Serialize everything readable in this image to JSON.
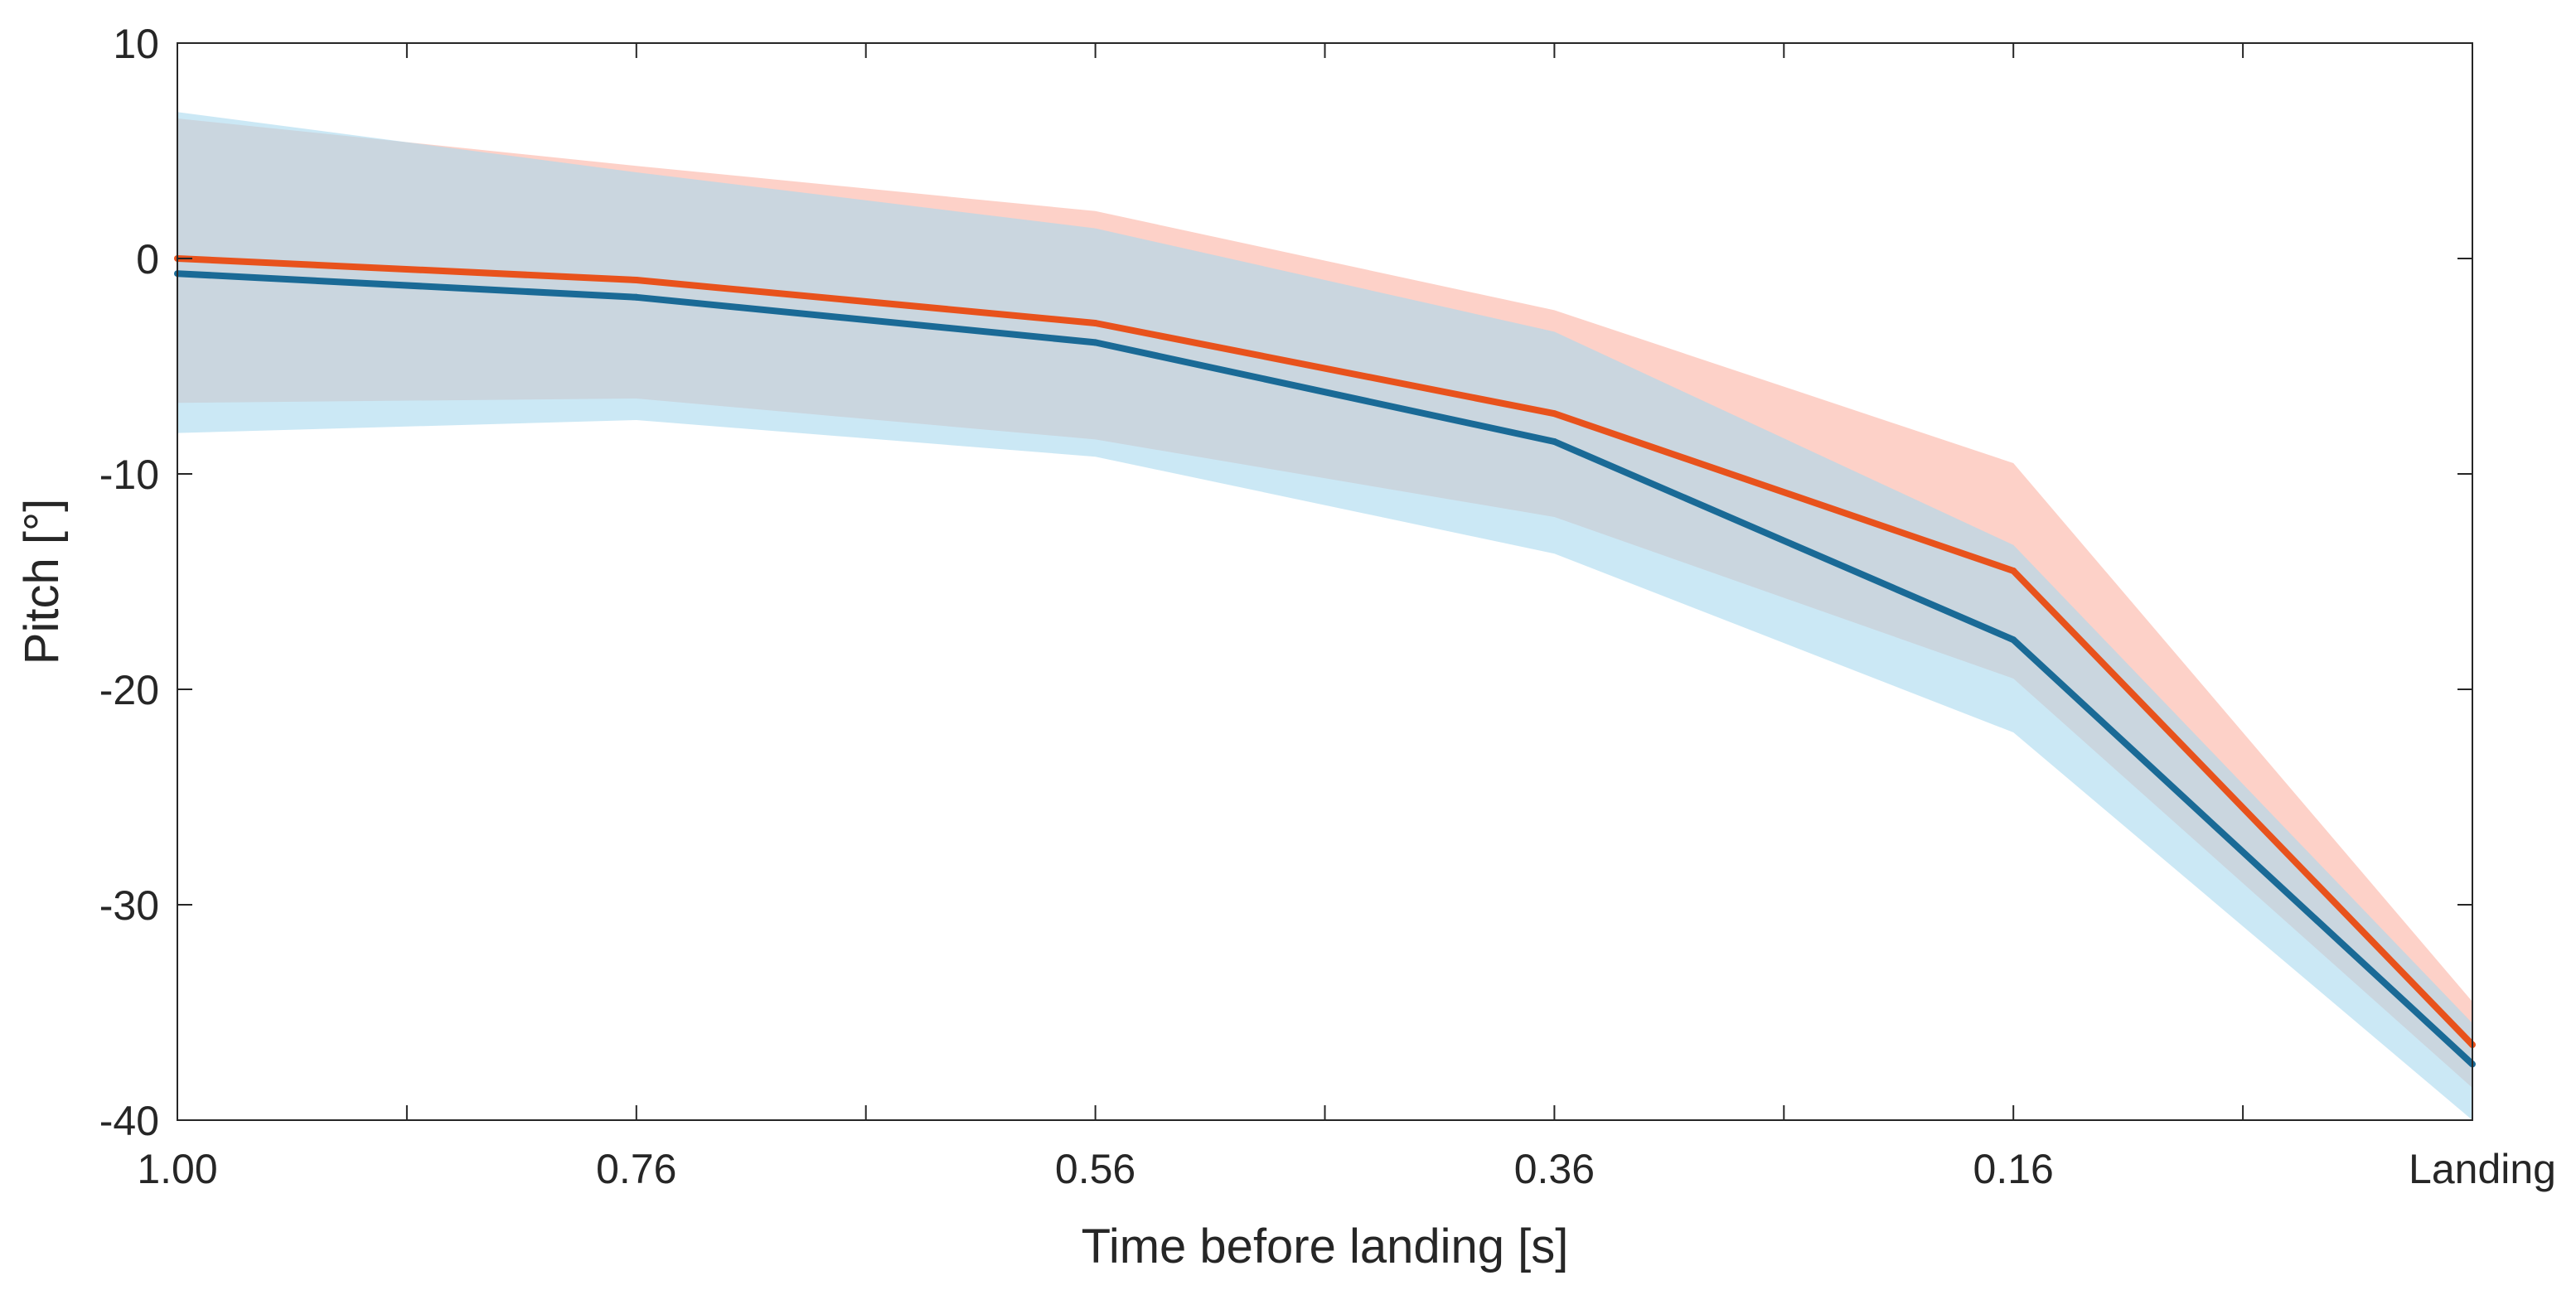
{
  "chart_data": {
    "type": "line",
    "title": "",
    "xlabel": "Time before landing [s]",
    "ylabel": "Pitch [°]",
    "x_tick_labels": [
      "1.00",
      "0.76",
      "0.56",
      "0.36",
      "0.16",
      "Landing"
    ],
    "x_minor_ticks": 11,
    "ylim": [
      -40,
      10
    ],
    "y_ticks": [
      10,
      0,
      -10,
      -20,
      -30,
      -40
    ],
    "grid": false,
    "series": [
      {
        "name": "series-orange",
        "color": "#e8521c",
        "band_color": "#fbb3a3",
        "values": [
          0,
          -1,
          -3,
          -7.2,
          -14.5,
          -36.5
        ],
        "band_upper": [
          6.5,
          4.3,
          2.2,
          -2.4,
          -9.5,
          -34.5
        ],
        "band_lower": [
          -6.7,
          -6.5,
          -8.4,
          -12,
          -19.5,
          -38.5
        ]
      },
      {
        "name": "series-blue",
        "color": "#1a6a96",
        "band_color": "#a8d9ee",
        "values": [
          -0.7,
          -1.8,
          -3.9,
          -8.5,
          -17.7,
          -37.4
        ],
        "band_upper": [
          6.8,
          4,
          1.4,
          -3.4,
          -13.3,
          -35.5
        ],
        "band_lower": [
          -8.1,
          -7.5,
          -9.2,
          -13.7,
          -22,
          -40
        ]
      }
    ]
  }
}
